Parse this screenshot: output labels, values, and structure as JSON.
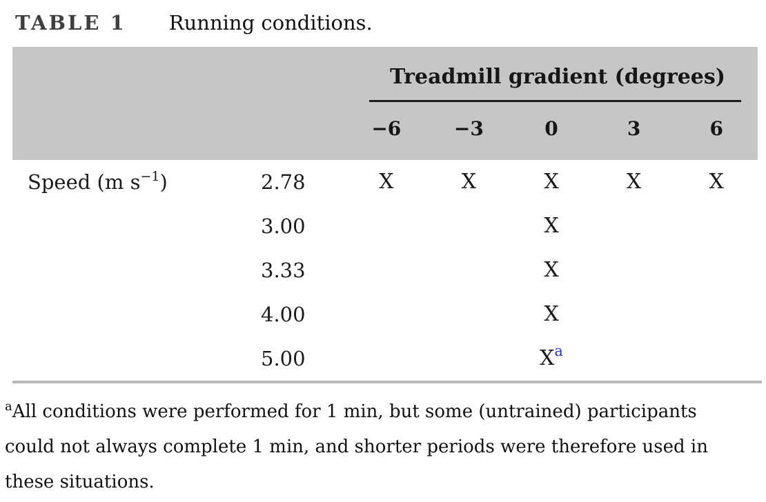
{
  "title": {
    "label": "TABLE 1",
    "caption": "Running conditions."
  },
  "table": {
    "group_header": "Treadmill gradient (degrees)",
    "gradient_columns": [
      "−6",
      "−3",
      "0",
      "3",
      "6"
    ],
    "row_label": {
      "prefix": "Speed (m s",
      "superscript": "−1",
      "suffix": ")"
    },
    "rows": [
      {
        "speed": "2.78",
        "marks": [
          "X",
          "X",
          "X",
          "X",
          "X"
        ]
      },
      {
        "speed": "3.00",
        "marks": [
          "",
          "",
          "X",
          "",
          ""
        ]
      },
      {
        "speed": "3.33",
        "marks": [
          "",
          "",
          "X",
          "",
          ""
        ]
      },
      {
        "speed": "4.00",
        "marks": [
          "",
          "",
          "X",
          "",
          ""
        ]
      },
      {
        "speed": "5.00",
        "marks": [
          "",
          "",
          "X",
          "",
          ""
        ],
        "footnote_marker": "a",
        "footnote_marker_col": 2
      }
    ]
  },
  "footnote": {
    "marker": "a",
    "text": "All conditions were performed for 1 min, but some (untrained) participants could not always complete 1 min, and shorter periods were therefore used in these situations."
  },
  "colors": {
    "header_band": "#c6c6c6",
    "footnote_marker_blue": "#2533c8",
    "title_label": "#3f3f3f",
    "header_rule": "#191919",
    "bottom_rule": "#b9b9b9"
  }
}
